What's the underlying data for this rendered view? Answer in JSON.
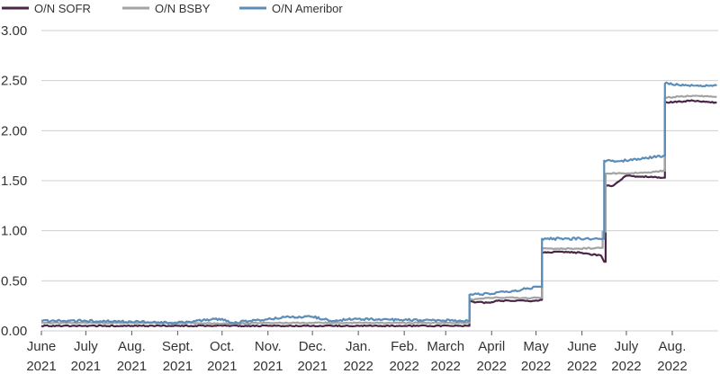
{
  "chart_data": {
    "type": "line",
    "title": "",
    "xlabel": "",
    "ylabel": "",
    "ylim": [
      0,
      3.0
    ],
    "yticks": [
      "0.00",
      "0.50",
      "1.00",
      "1.50",
      "2.00",
      "2.50",
      "3.00"
    ],
    "x_tick_labels": [
      [
        "June",
        "2021"
      ],
      [
        "July",
        "2021"
      ],
      [
        "Aug.",
        "2021"
      ],
      [
        "Sept.",
        "2021"
      ],
      [
        "Oct.",
        "2021"
      ],
      [
        "Nov.",
        "2021"
      ],
      [
        "Dec.",
        "2021"
      ],
      [
        "Jan.",
        "2022"
      ],
      [
        "Feb.",
        "2022"
      ],
      [
        "March",
        "2022"
      ],
      [
        "April",
        "2022"
      ],
      [
        "May",
        "2022"
      ],
      [
        "June",
        "2022"
      ],
      [
        "July",
        "2022"
      ],
      [
        "Aug.",
        "2022"
      ]
    ],
    "grid": "horizontal",
    "legend_position": "top-left",
    "series": [
      {
        "name": "O/N SOFR",
        "color": "#4a2545",
        "points": [
          [
            "2021-06-01",
            0.05
          ],
          [
            "2021-07-01",
            0.05
          ],
          [
            "2021-08-01",
            0.05
          ],
          [
            "2021-09-01",
            0.05
          ],
          [
            "2021-10-01",
            0.05
          ],
          [
            "2021-11-01",
            0.05
          ],
          [
            "2021-12-01",
            0.05
          ],
          [
            "2022-01-01",
            0.05
          ],
          [
            "2022-02-01",
            0.05
          ],
          [
            "2022-03-16",
            0.05
          ],
          [
            "2022-03-17",
            0.29
          ],
          [
            "2022-03-31",
            0.28
          ],
          [
            "2022-04-05",
            0.3
          ],
          [
            "2022-04-30",
            0.3
          ],
          [
            "2022-05-04",
            0.31
          ],
          [
            "2022-05-05",
            0.78
          ],
          [
            "2022-05-18",
            0.79
          ],
          [
            "2022-05-31",
            0.78
          ],
          [
            "2022-06-14",
            0.75
          ],
          [
            "2022-06-16",
            0.69
          ],
          [
            "2022-06-17",
            1.45
          ],
          [
            "2022-06-22",
            1.45
          ],
          [
            "2022-07-01",
            1.55
          ],
          [
            "2022-07-26",
            1.53
          ],
          [
            "2022-07-27",
            2.28
          ],
          [
            "2022-08-15",
            2.3
          ],
          [
            "2022-08-31",
            2.28
          ]
        ]
      },
      {
        "name": "O/N BSBY",
        "color": "#a3a3a3",
        "points": [
          [
            "2021-06-01",
            0.08
          ],
          [
            "2021-07-01",
            0.08
          ],
          [
            "2021-08-01",
            0.08
          ],
          [
            "2021-09-01",
            0.08
          ],
          [
            "2021-10-01",
            0.07
          ],
          [
            "2021-11-01",
            0.08
          ],
          [
            "2021-12-01",
            0.08
          ],
          [
            "2022-01-01",
            0.08
          ],
          [
            "2022-02-01",
            0.08
          ],
          [
            "2022-03-16",
            0.08
          ],
          [
            "2022-03-17",
            0.31
          ],
          [
            "2022-04-01",
            0.33
          ],
          [
            "2022-05-04",
            0.33
          ],
          [
            "2022-05-05",
            0.82
          ],
          [
            "2022-05-31",
            0.82
          ],
          [
            "2022-06-14",
            0.83
          ],
          [
            "2022-06-15",
            0.99
          ],
          [
            "2022-06-17",
            1.57
          ],
          [
            "2022-07-15",
            1.58
          ],
          [
            "2022-07-26",
            1.6
          ],
          [
            "2022-07-27",
            2.33
          ],
          [
            "2022-08-15",
            2.35
          ],
          [
            "2022-08-31",
            2.34
          ]
        ]
      },
      {
        "name": "O/N Ameribor",
        "color": "#5b8db8",
        "points": [
          [
            "2021-06-01",
            0.1
          ],
          [
            "2021-07-01",
            0.1
          ],
          [
            "2021-08-01",
            0.09
          ],
          [
            "2021-09-01",
            0.08
          ],
          [
            "2021-10-01",
            0.12
          ],
          [
            "2021-10-08",
            0.08
          ],
          [
            "2021-11-15",
            0.14
          ],
          [
            "2021-12-01",
            0.14
          ],
          [
            "2021-12-15",
            0.1
          ],
          [
            "2022-01-01",
            0.12
          ],
          [
            "2022-02-01",
            0.11
          ],
          [
            "2022-03-16",
            0.1
          ],
          [
            "2022-03-17",
            0.36
          ],
          [
            "2022-04-01",
            0.37
          ],
          [
            "2022-05-04",
            0.44
          ],
          [
            "2022-05-05",
            0.92
          ],
          [
            "2022-05-31",
            0.92
          ],
          [
            "2022-06-15",
            0.92
          ],
          [
            "2022-06-16",
            1.7
          ],
          [
            "2022-07-01",
            1.7
          ],
          [
            "2022-07-26",
            1.75
          ],
          [
            "2022-07-27",
            2.47
          ],
          [
            "2022-08-15",
            2.45
          ],
          [
            "2022-08-31",
            2.45
          ]
        ]
      }
    ]
  }
}
